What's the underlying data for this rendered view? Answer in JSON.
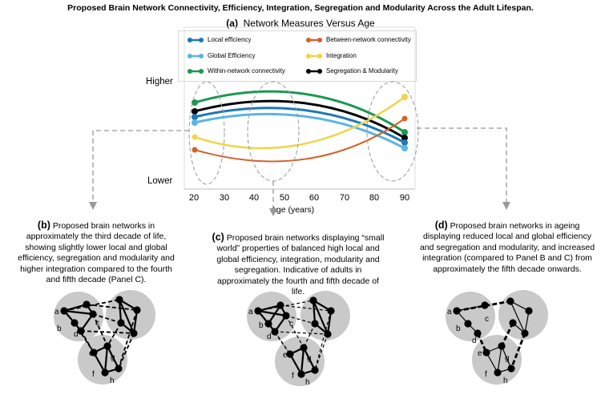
{
  "title": "Proposed Brain Network Connectivity, Efficiency, Integration, Segregation and Modularity Across the Adult Lifespan.",
  "panel_a": {
    "letter": "(a)",
    "heading": "Network Measures Versus Age",
    "y_high": "Higher",
    "y_low": "Lower",
    "x_ticks": [
      "20",
      "30",
      "40",
      "50",
      "60",
      "70",
      "80",
      "90"
    ],
    "x_label": "Age (years)",
    "legend": [
      {
        "label": "Local efficiency",
        "color": "#1f78b4"
      },
      {
        "label": "Between-network connectivity",
        "color": "#d4622a"
      },
      {
        "label": "Global Efficiency",
        "color": "#5bb4e5"
      },
      {
        "label": "Integration",
        "color": "#f0d44a"
      },
      {
        "label": "Within-network connectivity",
        "color": "#1a9850"
      },
      {
        "label": "Segregation & Modularity",
        "color": "#000000"
      }
    ]
  },
  "panel_b": {
    "letter": "(b)",
    "text": "Proposed brain networks in approximately the third decade of life, showing slightly lower local and global efficiency, segregation and modularity and higher integration compared to the fourth and fifth decade (Panel C)."
  },
  "panel_c": {
    "letter": "(c)",
    "text": "Proposed brain networks displaying “small world” properties of balanced high local and global efficiency, integration, modularity and segregation. Indicative of adults in approximately the fourth and fifth decade of life."
  },
  "panel_d": {
    "letter": "(d)",
    "text": "Proposed brain networks in ageing displaying reduced local and global efficiency and segregation and modularity, and increased integration (compared to Panel B and C) from approximately the fifth decade onwards."
  },
  "node_labels": [
    "a",
    "b",
    "c",
    "d",
    "e",
    "f",
    "g",
    "h"
  ]
}
